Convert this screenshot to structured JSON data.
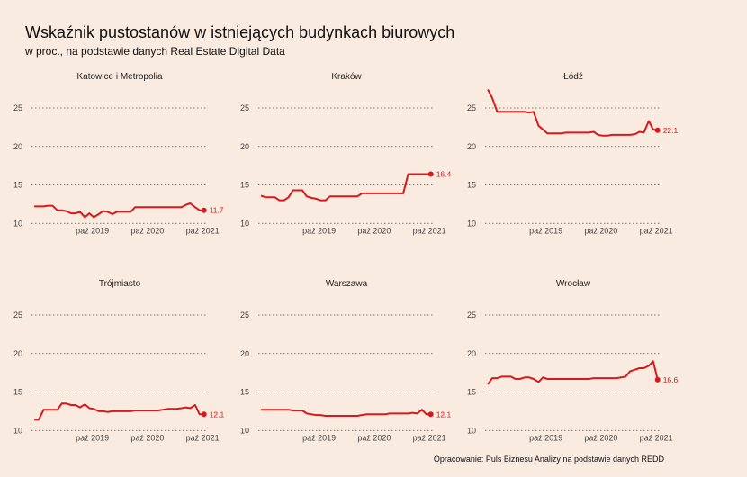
{
  "title": "Wskaźnik pustostanów w istniejących budynkach biurowych",
  "subtitle": "w proc., na podstawie danych Real Estate Digital Data",
  "caption": "Opracowanie: Puls Biznesu Analizy na podstawie danych REDD",
  "colors": {
    "background": "#faebe0",
    "line": "#d7191c",
    "grid": "#555555"
  },
  "chart_data": {
    "type": "line",
    "ylim": [
      10,
      27.5
    ],
    "yticks": [
      10,
      15,
      20,
      25
    ],
    "xlim": [
      2018.45,
      2021.65
    ],
    "xticks": [
      {
        "x": 2019.75,
        "label": "paź 2019"
      },
      {
        "x": 2020.75,
        "label": "paź 2020"
      },
      {
        "x": 2021.75,
        "label": "paź 2021"
      }
    ],
    "grid": "horizontal dotted",
    "panels": [
      {
        "name": "Katowice i Metropolia",
        "end_label": "11.7",
        "x": [
          2018.5,
          2018.58,
          2018.67,
          2018.75,
          2018.83,
          2018.92,
          2019.0,
          2019.08,
          2019.17,
          2019.25,
          2019.33,
          2019.42,
          2019.5,
          2019.58,
          2019.67,
          2019.75,
          2019.83,
          2019.92,
          2020.0,
          2020.08,
          2020.17,
          2020.25,
          2020.33,
          2020.42,
          2020.5,
          2020.58,
          2020.67,
          2020.75,
          2020.83,
          2020.92,
          2021.0,
          2021.08,
          2021.17,
          2021.25,
          2021.33,
          2021.42,
          2021.5,
          2021.58
        ],
        "y": [
          12.2,
          12.2,
          12.2,
          12.3,
          12.3,
          11.7,
          11.7,
          11.6,
          11.3,
          11.3,
          11.5,
          10.8,
          11.3,
          10.8,
          11.2,
          11.6,
          11.5,
          11.2,
          11.5,
          11.5,
          11.5,
          11.5,
          12.1,
          12.1,
          12.1,
          12.1,
          12.1,
          12.1,
          12.1,
          12.1,
          12.1,
          12.1,
          12.1,
          12.4,
          12.6,
          12.1,
          11.7,
          11.7
        ]
      },
      {
        "name": "Kraków",
        "end_label": "16.4",
        "x": [
          2018.5,
          2018.58,
          2018.67,
          2018.75,
          2018.83,
          2018.92,
          2019.0,
          2019.08,
          2019.17,
          2019.25,
          2019.33,
          2019.42,
          2019.5,
          2019.58,
          2019.67,
          2019.75,
          2019.83,
          2019.92,
          2020.0,
          2020.08,
          2020.17,
          2020.25,
          2020.33,
          2020.42,
          2020.5,
          2020.58,
          2020.67,
          2020.75,
          2020.83,
          2020.92,
          2021.0,
          2021.08,
          2021.17,
          2021.25,
          2021.33,
          2021.42,
          2021.5,
          2021.58
        ],
        "y": [
          13.6,
          13.4,
          13.4,
          13.4,
          13.0,
          13.0,
          13.4,
          14.3,
          14.3,
          14.3,
          13.5,
          13.3,
          13.2,
          13.0,
          13.0,
          13.5,
          13.5,
          13.5,
          13.5,
          13.5,
          13.5,
          13.5,
          13.9,
          13.9,
          13.9,
          13.9,
          13.9,
          13.9,
          13.9,
          13.9,
          13.9,
          13.9,
          16.4,
          16.4,
          16.4,
          16.4,
          16.4,
          16.4
        ]
      },
      {
        "name": "Łódź",
        "end_label": "22.1",
        "x": [
          2018.5,
          2018.58,
          2018.67,
          2018.75,
          2018.83,
          2018.92,
          2019.0,
          2019.08,
          2019.17,
          2019.25,
          2019.33,
          2019.42,
          2019.5,
          2019.58,
          2019.67,
          2019.75,
          2019.83,
          2019.92,
          2020.0,
          2020.08,
          2020.17,
          2020.25,
          2020.33,
          2020.42,
          2020.5,
          2020.58,
          2020.67,
          2020.75,
          2020.83,
          2020.92,
          2021.0,
          2021.08,
          2021.17,
          2021.25,
          2021.33,
          2021.42,
          2021.5,
          2021.58
        ],
        "y": [
          27.4,
          26.3,
          24.5,
          24.5,
          24.5,
          24.5,
          24.5,
          24.5,
          24.5,
          24.4,
          24.5,
          22.7,
          22.2,
          21.7,
          21.7,
          21.7,
          21.7,
          21.8,
          21.8,
          21.8,
          21.8,
          21.8,
          21.8,
          21.9,
          21.5,
          21.4,
          21.4,
          21.5,
          21.5,
          21.5,
          21.5,
          21.5,
          21.6,
          21.9,
          21.8,
          23.3,
          22.2,
          22.1
        ]
      },
      {
        "name": "Trójmiasto",
        "end_label": "12.1",
        "x": [
          2018.5,
          2018.58,
          2018.67,
          2018.75,
          2018.83,
          2018.92,
          2019.0,
          2019.08,
          2019.17,
          2019.25,
          2019.33,
          2019.42,
          2019.5,
          2019.58,
          2019.67,
          2019.75,
          2019.83,
          2019.92,
          2020.0,
          2020.08,
          2020.17,
          2020.25,
          2020.33,
          2020.42,
          2020.5,
          2020.58,
          2020.67,
          2020.75,
          2020.83,
          2020.92,
          2021.0,
          2021.08,
          2021.17,
          2021.25,
          2021.33,
          2021.42,
          2021.5,
          2021.58
        ],
        "y": [
          11.4,
          11.4,
          12.7,
          12.7,
          12.7,
          12.7,
          13.5,
          13.5,
          13.3,
          13.3,
          13.0,
          13.4,
          12.9,
          12.8,
          12.5,
          12.5,
          12.4,
          12.5,
          12.5,
          12.5,
          12.5,
          12.5,
          12.6,
          12.6,
          12.6,
          12.6,
          12.6,
          12.6,
          12.7,
          12.8,
          12.8,
          12.8,
          12.9,
          13.0,
          12.9,
          13.3,
          12.1,
          12.1
        ]
      },
      {
        "name": "Warszawa",
        "end_label": "12.1",
        "x": [
          2018.5,
          2018.58,
          2018.67,
          2018.75,
          2018.83,
          2018.92,
          2019.0,
          2019.08,
          2019.17,
          2019.25,
          2019.33,
          2019.42,
          2019.5,
          2019.58,
          2019.67,
          2019.75,
          2019.83,
          2019.92,
          2020.0,
          2020.08,
          2020.17,
          2020.25,
          2020.33,
          2020.42,
          2020.5,
          2020.58,
          2020.67,
          2020.75,
          2020.83,
          2020.92,
          2021.0,
          2021.08,
          2021.17,
          2021.25,
          2021.33,
          2021.42,
          2021.5,
          2021.58
        ],
        "y": [
          12.7,
          12.7,
          12.7,
          12.7,
          12.7,
          12.7,
          12.7,
          12.6,
          12.6,
          12.6,
          12.2,
          12.1,
          12.0,
          12.0,
          11.9,
          11.9,
          11.9,
          11.9,
          11.9,
          11.9,
          11.9,
          11.9,
          12.0,
          12.1,
          12.1,
          12.1,
          12.1,
          12.1,
          12.2,
          12.2,
          12.2,
          12.2,
          12.2,
          12.3,
          12.2,
          12.7,
          12.1,
          12.1
        ]
      },
      {
        "name": "Wrocław",
        "end_label": "16.6",
        "x": [
          2018.5,
          2018.58,
          2018.67,
          2018.75,
          2018.83,
          2018.92,
          2019.0,
          2019.08,
          2019.17,
          2019.25,
          2019.33,
          2019.42,
          2019.5,
          2019.58,
          2019.67,
          2019.75,
          2019.83,
          2019.92,
          2020.0,
          2020.08,
          2020.17,
          2020.25,
          2020.33,
          2020.42,
          2020.5,
          2020.58,
          2020.67,
          2020.75,
          2020.83,
          2020.92,
          2021.0,
          2021.08,
          2021.17,
          2021.25,
          2021.33,
          2021.42,
          2021.5,
          2021.58
        ],
        "y": [
          16.0,
          16.8,
          16.8,
          17.0,
          17.0,
          17.0,
          16.7,
          16.7,
          16.9,
          16.9,
          16.7,
          16.3,
          16.9,
          16.7,
          16.7,
          16.7,
          16.7,
          16.7,
          16.7,
          16.7,
          16.7,
          16.7,
          16.7,
          16.8,
          16.8,
          16.8,
          16.8,
          16.8,
          16.8,
          16.9,
          17.0,
          17.7,
          17.9,
          18.1,
          18.1,
          18.4,
          19.0,
          16.6
        ]
      }
    ]
  }
}
